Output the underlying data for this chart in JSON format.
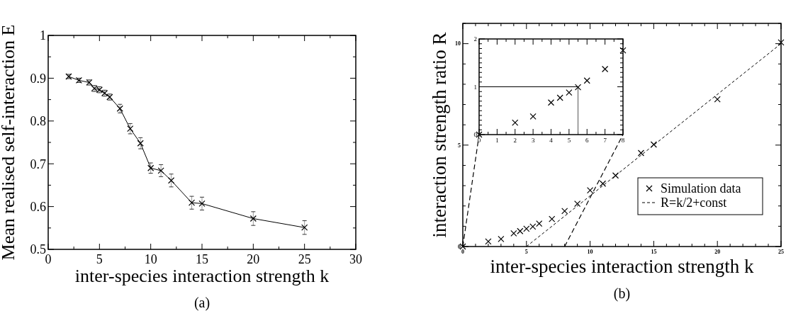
{
  "chart_data": [
    {
      "type": "line",
      "xlabel": "inter-species interaction strength k",
      "ylabel": "Mean realised self-interaction E",
      "annotations": [
        "(a)"
      ],
      "marker": "cross",
      "x": [
        2,
        3,
        4,
        4.5,
        5,
        5.5,
        6,
        7,
        8,
        9,
        10,
        11,
        12,
        14,
        15,
        20,
        25
      ],
      "series": [
        {
          "color": "#000000",
          "values": [
            0.904,
            0.895,
            0.89,
            0.876,
            0.873,
            0.865,
            0.856,
            0.829,
            0.782,
            0.748,
            0.69,
            0.684,
            0.661,
            0.609,
            0.607,
            0.572,
            0.551
          ],
          "errors": [
            0.005,
            0.005,
            0.006,
            0.007,
            0.007,
            0.007,
            0.007,
            0.01,
            0.012,
            0.013,
            0.012,
            0.014,
            0.015,
            0.015,
            0.015,
            0.016,
            0.016
          ]
        }
      ],
      "xlim": [
        0,
        30
      ],
      "xticks": [
        0,
        {
          "value": 2.5,
          "label": null
        },
        5,
        {
          "value": 7.5,
          "label": null
        },
        10,
        {
          "value": 12.5,
          "label": null
        },
        15,
        {
          "value": 17.5,
          "label": null
        },
        20,
        {
          "value": 22.5,
          "label": null
        },
        25,
        {
          "value": 27.5,
          "label": null
        },
        30
      ],
      "ylim": [
        0.5,
        1
      ],
      "yticks": [
        0.5,
        {
          "value": 0.55,
          "label": null
        },
        0.6,
        {
          "value": 0.65,
          "label": null
        },
        0.7,
        {
          "value": 0.75,
          "label": null
        },
        0.8,
        {
          "value": 0.85,
          "label": null
        },
        0.9,
        {
          "value": 0.95,
          "label": null
        },
        1
      ],
      "grid": false,
      "legend": false
    },
    {
      "type": "scatter",
      "xlabel": "inter-species interaction strength k",
      "ylabel": "interaction strength ratio R",
      "annotations": [
        "(b)"
      ],
      "legend": "bottom right",
      "grid": false,
      "series": [
        {
          "name": "Simulation data",
          "marker": "cross",
          "color": "#000000",
          "x": [
            0,
            2,
            3,
            4,
            4.5,
            5,
            5.5,
            6,
            7,
            8,
            9,
            10,
            11,
            12,
            14,
            15,
            20,
            25
          ],
          "values": [
            0,
            0.25,
            0.37,
            0.65,
            0.76,
            0.88,
            0.98,
            1.13,
            1.36,
            1.75,
            2.11,
            2.77,
            3.1,
            3.5,
            4.61,
            5.03,
            7.26,
            10.06
          ]
        },
        {
          "name": "R=k/2+const",
          "type": "line",
          "marker": "none",
          "line_style": "dashed",
          "color": "#000000",
          "x": [
            5,
            25
          ],
          "values": [
            0,
            10
          ]
        }
      ],
      "xlim": [
        0,
        25
      ],
      "xticks": [
        0,
        {
          "value": 1,
          "label": null
        },
        {
          "value": 2,
          "label": null
        },
        {
          "value": 3,
          "label": null
        },
        {
          "value": 4,
          "label": null
        },
        5,
        {
          "value": 6,
          "label": null
        },
        {
          "value": 7,
          "label": null
        },
        {
          "value": 8,
          "label": null
        },
        {
          "value": 9,
          "label": null
        },
        10,
        {
          "value": 11,
          "label": null
        },
        {
          "value": 12,
          "label": null
        },
        {
          "value": 13,
          "label": null
        },
        {
          "value": 14,
          "label": null
        },
        15,
        {
          "value": 16,
          "label": null
        },
        {
          "value": 17,
          "label": null
        },
        {
          "value": 18,
          "label": null
        },
        {
          "value": 19,
          "label": null
        },
        20,
        {
          "value": 21,
          "label": null
        },
        {
          "value": 22,
          "label": null
        },
        {
          "value": 23,
          "label": null
        },
        {
          "value": 24,
          "label": null
        },
        25
      ],
      "ylim": [
        0,
        11
      ],
      "yticks": [
        0,
        {
          "value": 1,
          "label": null
        },
        {
          "value": 2,
          "label": null
        },
        {
          "value": 3,
          "label": null
        },
        {
          "value": 4,
          "label": null
        },
        5,
        {
          "value": 6,
          "label": null
        },
        {
          "value": 7,
          "label": null
        },
        {
          "value": 8,
          "label": null
        },
        {
          "value": 9,
          "label": null
        },
        10,
        {
          "value": 11,
          "label": null
        }
      ]
    },
    {
      "type": "scatter",
      "marker": "cross",
      "grid": false,
      "legend": false,
      "x": [
        0,
        2,
        3,
        4,
        4.5,
        5,
        5.5,
        6,
        7,
        8
      ],
      "series": [
        {
          "color": "#000000",
          "values": [
            0,
            0.25,
            0.38,
            0.67,
            0.77,
            0.88,
            0.99,
            1.13,
            1.37,
            1.76
          ]
        }
      ],
      "ref_lines": [
        {
          "axis": "y",
          "value": 1
        },
        {
          "axis": "x",
          "value": 5.5
        }
      ],
      "xlim": [
        0,
        8
      ],
      "xticks": [
        0,
        {
          "value": 0.5,
          "label": null
        },
        1,
        {
          "value": 1.5,
          "label": null
        },
        2,
        {
          "value": 2.5,
          "label": null
        },
        3,
        {
          "value": 3.5,
          "label": null
        },
        4,
        {
          "value": 4.5,
          "label": null
        },
        5,
        {
          "value": 5.5,
          "label": null
        },
        6,
        {
          "value": 6.5,
          "label": null
        },
        7,
        {
          "value": 7.5,
          "label": null
        },
        8
      ],
      "ylim": [
        0,
        2
      ],
      "yticks": [
        0,
        {
          "value": 0.1,
          "label": null
        },
        {
          "value": 0.2,
          "label": null
        },
        {
          "value": 0.3,
          "label": null
        },
        {
          "value": 0.4,
          "label": null
        },
        {
          "value": 0.5,
          "label": null
        },
        {
          "value": 0.6,
          "label": null
        },
        {
          "value": 0.7,
          "label": null
        },
        {
          "value": 0.8,
          "label": null
        },
        {
          "value": 0.9,
          "label": null
        },
        1,
        {
          "value": 1.1,
          "label": null
        },
        {
          "value": 1.2,
          "label": null
        },
        {
          "value": 1.3,
          "label": null
        },
        {
          "value": 1.4,
          "label": null
        },
        {
          "value": 1.5,
          "label": null
        },
        {
          "value": 1.6,
          "label": null
        },
        {
          "value": 1.7,
          "label": null
        },
        {
          "value": 1.8,
          "label": null
        },
        {
          "value": 1.9,
          "label": null
        },
        2
      ]
    }
  ]
}
